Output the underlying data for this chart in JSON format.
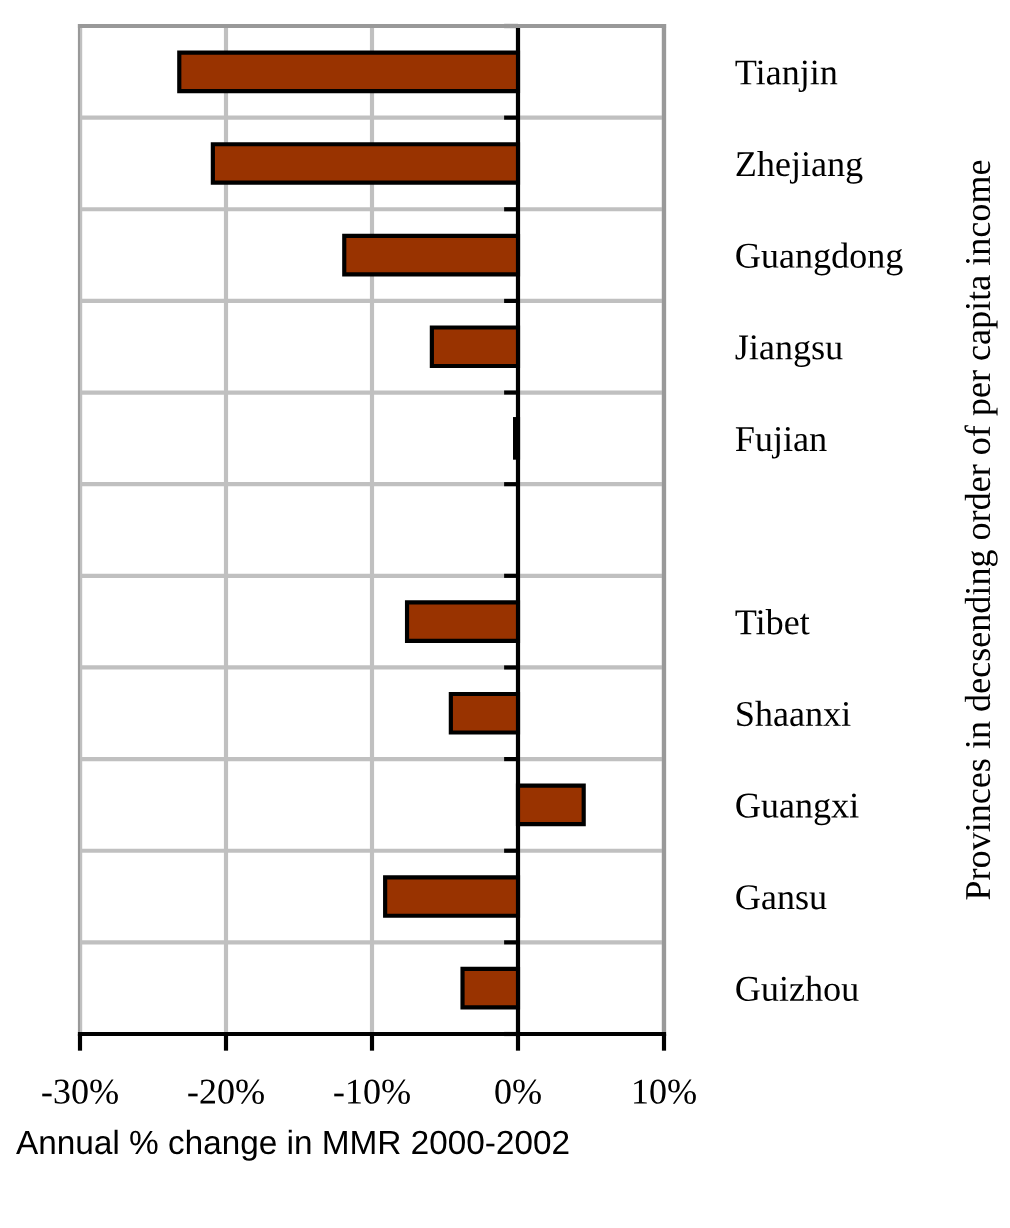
{
  "chart_data": {
    "type": "bar",
    "orientation": "horizontal",
    "categories": [
      "Tianjin",
      "Zhejiang",
      "Guangdong",
      "Jiangsu",
      "Fujian",
      null,
      "Tibet",
      "Shaanxi",
      "Guangxi",
      "Gansu",
      "Guizhou"
    ],
    "values": [
      -23.2,
      -20.9,
      -11.9,
      -5.9,
      -0.2,
      null,
      -7.6,
      -4.6,
      4.5,
      -9.1,
      -3.8
    ],
    "color": "#993300",
    "xlim": [
      -30,
      10
    ],
    "xticks": [
      {
        "value": -30,
        "label": "-30%"
      },
      {
        "value": -20,
        "label": "-20%"
      },
      {
        "value": -10,
        "label": "-10%"
      },
      {
        "value": 0,
        "label": "0%"
      },
      {
        "value": 10,
        "label": "10%"
      }
    ],
    "xlabel": "Annual % change in MMR 2000-2002",
    "ylabel": "Provinces in decsending order of per capita income",
    "grid": true
  }
}
